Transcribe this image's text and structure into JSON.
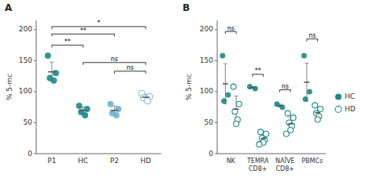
{
  "chart_data": [
    {
      "type": "strip",
      "title": "A",
      "y_label": "% 5-mc",
      "categories": [
        "P1",
        "HC",
        "P2",
        "HD"
      ],
      "ylim": [
        0,
        215
      ],
      "yticks": [
        0,
        50,
        100,
        150,
        200
      ],
      "series": [
        {
          "marker": "filled",
          "colors": [
            "#1a8a8a",
            "#1a8a8a",
            "#6ab4d0",
            null
          ],
          "values": [
            [
              158,
              130,
              122,
              118
            ],
            [
              77,
              72,
              67,
              62
            ],
            [
              80,
              72,
              65,
              62
            ],
            null
          ],
          "means": [
            132,
            69.5,
            69.75,
            null
          ],
          "errors": [
            15.6205,
            5.5902,
            6.9417,
            null
          ]
        },
        {
          "marker": "open",
          "color": "#7ab8d4",
          "values": [
            null,
            null,
            null,
            [
              97,
              92,
              90,
              85
            ]
          ],
          "means": [
            null,
            null,
            null,
            91
          ],
          "errors": [
            null,
            null,
            null,
            4.3012
          ]
        }
      ],
      "annotations": [
        {
          "from": "P1",
          "to": "HD",
          "y": 205,
          "label": "*"
        },
        {
          "from": "P1",
          "to": "P2",
          "y": 193,
          "label": "**"
        },
        {
          "from": "P1",
          "to": "HC",
          "y": 175,
          "label": "**"
        },
        {
          "from": "HC",
          "to": "HD",
          "y": 147,
          "label": "ns"
        },
        {
          "from": "P2",
          "to": "HD",
          "y": 133,
          "label": "ns"
        }
      ]
    },
    {
      "type": "strip",
      "title": "B",
      "y_label": "% 5-mc",
      "categories": [
        "NK",
        "TEMRA\nCD8+",
        "NAÏVE\nCD8+",
        "PBMCs"
      ],
      "ylim": [
        0,
        215
      ],
      "yticks": [
        0,
        50,
        100,
        150,
        200
      ],
      "legend": "right",
      "series": [
        {
          "name": "HC",
          "color": "#1a8a8a",
          "marker": "filled",
          "values": [
            [
              158,
              95,
              85
            ],
            [
              108,
              105
            ],
            [
              80,
              75
            ],
            [
              158,
              100,
              88
            ]
          ],
          "means": [
            112.6667,
            106.5,
            77.5,
            115.3333
          ],
          "errors": [
            32.3144,
            1.5,
            2.5,
            30.5651
          ]
        },
        {
          "name": "HD",
          "color": "#1a8a8a",
          "marker": "open",
          "values": [
            [
              108,
              80,
              68,
              55,
              48
            ],
            [
              35,
              32,
              25,
              22,
              18,
              15
            ],
            [
              65,
              58,
              50,
              45,
              38,
              32
            ],
            [
              78,
              72,
              65,
              60,
              55
            ]
          ],
          "means": [
            71.8,
            24.5,
            48,
            66
          ],
          "errors": [
            21.1698,
            7.1356,
            11.2398,
            8.2219
          ]
        }
      ],
      "annotations": [
        {
          "category": "NK",
          "from": "HC",
          "to": "HD",
          "y": 197,
          "label": "ns"
        },
        {
          "category": "TEMRA\nCD8+",
          "from": "HC",
          "to": "HD",
          "y": 128,
          "label": "**"
        },
        {
          "category": "NAÏVE\nCD8+",
          "from": "HC",
          "to": "HD",
          "y": 103,
          "label": "ns"
        },
        {
          "category": "PBMCs",
          "from": "HC",
          "to": "HD",
          "y": 185,
          "label": "ns"
        }
      ]
    }
  ]
}
